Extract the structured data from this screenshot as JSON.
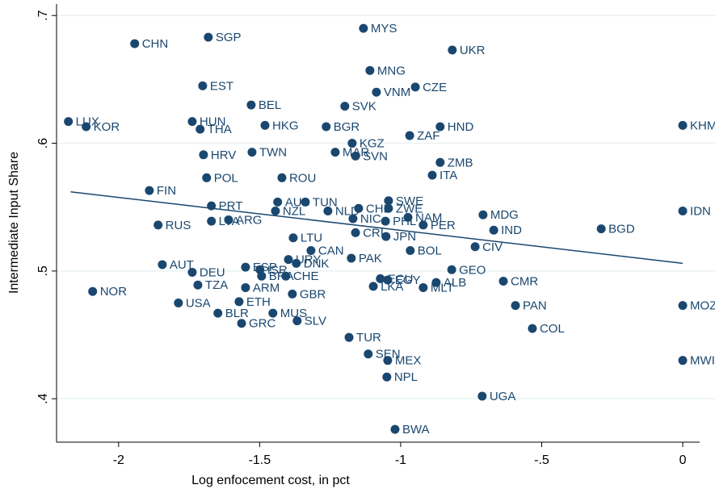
{
  "chart_data": {
    "type": "scatter",
    "x_label": "Log enfocement cost, in pct",
    "y_label": "Intermediate Input Share",
    "color": "#1a476f",
    "grid": true,
    "xlim": [
      -2.22,
      0.06
    ],
    "ylim": [
      0.366,
      0.709
    ],
    "xticks": [
      -2,
      -1.5,
      -1,
      {
        "value": -0.5,
        "label": "-.5"
      },
      0
    ],
    "yticks": [
      {
        "value": 0.4,
        "label": ".4"
      },
      {
        "value": 0.5,
        "label": ".5"
      },
      {
        "value": 0.6,
        "label": ".6"
      },
      {
        "value": 0.7,
        "label": ".7"
      }
    ],
    "labels": [
      "CHN",
      "SGP",
      "MYS",
      "UKR",
      "MNG",
      "EST",
      "CZE",
      "VNM",
      "BEL",
      "SVK",
      "LUX",
      "KOR",
      "HUN",
      "THA",
      "HKG",
      "BGR",
      "HND",
      "KHM",
      "ZAF",
      "KGZ",
      "MAR",
      "SVN",
      "HRV",
      "TWN",
      "ZMB",
      "POL",
      "ROU",
      "ITA",
      "FIN",
      "AUS",
      "TUN",
      "SWE",
      "PRT",
      "NZL",
      "NLD",
      "CHL",
      "ZWE",
      "MDG",
      "IDN",
      "RUS",
      "LVA",
      "ARG",
      "NIC",
      "PHL",
      "NAM",
      "PER",
      "BGD",
      "IND",
      "CRI",
      "JPN",
      "LTU",
      "CIV",
      "BOL",
      "CAN",
      "PAK",
      "URY",
      "DNK",
      "AUT",
      "DEU",
      "ESP",
      "ISR",
      "GEO",
      "BRA",
      "CHE",
      "NOR",
      "TZA",
      "ARM",
      "ECU",
      "EGY",
      "MLT",
      "ALB",
      "CMR",
      "LKA",
      "GBR",
      "USA",
      "ETH",
      "MOZ",
      "PAN",
      "BLR",
      "MUS",
      "GRC",
      "SLV",
      "COL",
      "TUR",
      "SEN",
      "MEX",
      "MWI",
      "NPL",
      "UGA",
      "BWA"
    ],
    "x": [
      -1.943,
      -1.682,
      -1.132,
      -0.817,
      -1.109,
      -1.702,
      -0.948,
      -1.086,
      -1.53,
      -1.198,
      -2.178,
      -2.115,
      -1.739,
      -1.711,
      -1.481,
      -1.264,
      -0.86,
      0,
      -0.968,
      -1.172,
      -1.232,
      -1.16,
      -1.699,
      -1.527,
      -0.86,
      -1.688,
      -1.421,
      -0.888,
      -1.891,
      -1.436,
      -1.338,
      -1.043,
      -1.671,
      -1.444,
      -1.258,
      -1.149,
      -1.043,
      -0.708,
      0,
      -1.86,
      -1.671,
      -1.61,
      -1.169,
      -1.054,
      -0.974,
      -0.92,
      -0.289,
      -0.67,
      -1.16,
      -1.052,
      -1.381,
      -0.736,
      -0.966,
      -1.318,
      -1.175,
      -1.398,
      -1.37,
      -1.845,
      -1.739,
      -1.55,
      -1.499,
      -0.819,
      -1.493,
      -1.407,
      -2.092,
      -1.719,
      -1.55,
      -1.072,
      -1.046,
      -0.92,
      -0.874,
      -0.636,
      -1.097,
      -1.384,
      -1.788,
      -1.573,
      0,
      -0.593,
      -1.648,
      -1.453,
      -1.564,
      -1.367,
      -0.533,
      -1.183,
      -1.115,
      -1.046,
      0,
      -1.049,
      -0.711,
      -1.02
    ],
    "values": [
      0.678,
      0.683,
      0.69,
      0.673,
      0.657,
      0.645,
      0.644,
      0.64,
      0.63,
      0.629,
      0.617,
      0.613,
      0.617,
      0.611,
      0.614,
      0.613,
      0.613,
      0.614,
      0.606,
      0.6,
      0.593,
      0.59,
      0.591,
      0.593,
      0.585,
      0.573,
      0.573,
      0.575,
      0.563,
      0.554,
      0.554,
      0.555,
      0.551,
      0.547,
      0.547,
      0.549,
      0.549,
      0.544,
      0.547,
      0.536,
      0.539,
      0.54,
      0.541,
      0.539,
      0.542,
      0.536,
      0.533,
      0.532,
      0.53,
      0.527,
      0.526,
      0.519,
      0.516,
      0.516,
      0.51,
      0.509,
      0.506,
      0.505,
      0.499,
      0.503,
      0.501,
      0.501,
      0.496,
      0.496,
      0.484,
      0.489,
      0.487,
      0.494,
      0.493,
      0.487,
      0.491,
      0.492,
      0.488,
      0.482,
      0.475,
      0.476,
      0.473,
      0.473,
      0.467,
      0.467,
      0.459,
      0.461,
      0.455,
      0.448,
      0.435,
      0.43,
      0.43,
      0.417,
      0.402,
      0.376
    ],
    "fit_line": {
      "x": [
        -2.17,
        0
      ],
      "values": [
        0.562,
        0.506
      ]
    }
  }
}
